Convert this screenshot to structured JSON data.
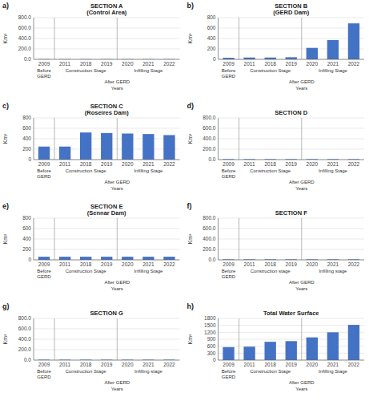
{
  "chart_data": [
    {
      "type": "bar",
      "title": "SECTION A\n(Control Area)",
      "ylabel": "Km²",
      "categories": [
        "2009",
        "2011",
        "2018",
        "2019",
        "2020",
        "2021",
        "2022"
      ],
      "values": [
        5,
        5,
        5,
        5,
        5,
        5,
        5
      ],
      "color": "#4472C4",
      "ylim": [
        0,
        800
      ],
      "yticks": [
        {
          "value": 0,
          "label": "0.0"
        },
        {
          "value": 200,
          "label": "200.0"
        },
        {
          "value": 400,
          "label": "400.0"
        },
        {
          "value": 600,
          "label": "600.0"
        },
        {
          "value": 800,
          "label": "800.0"
        }
      ],
      "grid": true,
      "annotations": [
        "a)",
        "Before\nGERD",
        "Construction Stage",
        "Infilling Stage",
        "After GERD",
        "Years"
      ]
    },
    {
      "type": "bar",
      "title": "SECTION B\n(GERD Dam)",
      "ylabel": "Km²",
      "categories": [
        "2009",
        "2011",
        "2018",
        "2019",
        "2020",
        "2021",
        "2022"
      ],
      "values": [
        30,
        35,
        35,
        40,
        220,
        370,
        690
      ],
      "color": "#4472C4",
      "ylim": [
        0,
        800
      ],
      "yticks": [
        0,
        200,
        400,
        600,
        800
      ],
      "grid": true,
      "annotations": [
        "b)",
        "Before\nGERD",
        "Construction Stage",
        "Infilling Stage",
        "After GERD",
        "Years"
      ]
    },
    {
      "type": "bar",
      "title": "SECTION C\n(Roseires Dam)",
      "ylabel": "Km²",
      "categories": [
        "2009",
        "2011",
        "2018",
        "2019",
        "2020",
        "2021",
        "2022"
      ],
      "values": [
        250,
        250,
        520,
        510,
        500,
        490,
        470
      ],
      "color": "#4472C4",
      "ylim": [
        0,
        800
      ],
      "yticks": [
        0,
        200,
        400,
        600,
        800
      ],
      "grid": true,
      "annotations": [
        "c)",
        "Before\nGERD",
        "Construction Stage",
        "Infilling Stage",
        "After GERD",
        "Years"
      ]
    },
    {
      "type": "bar",
      "title": "SECTION D",
      "ylabel": "Km²",
      "categories": [
        "2009",
        "2011",
        "2018",
        "2019",
        "2020",
        "2021",
        "2022"
      ],
      "values": [
        10,
        10,
        10,
        10,
        10,
        10,
        10
      ],
      "color": "#4472C4",
      "ylim": [
        0,
        800
      ],
      "yticks": [
        {
          "value": 0,
          "label": "0.0"
        },
        {
          "value": 200,
          "label": "200.0"
        },
        {
          "value": 400,
          "label": "400.0"
        },
        {
          "value": 600,
          "label": "600.0"
        },
        {
          "value": 800,
          "label": "800.0"
        }
      ],
      "grid": true,
      "annotations": [
        "d)",
        "Before\nGERD",
        "Construction Stage",
        "Infilling Stage",
        "After GERD",
        "Years"
      ]
    },
    {
      "type": "bar",
      "title": "SECTION E\n(Sennar Dam)",
      "ylabel": "Km²",
      "categories": [
        "2009",
        "2011",
        "2018",
        "2019",
        "2020",
        "2021",
        "2022"
      ],
      "values": [
        60,
        60,
        60,
        60,
        60,
        60,
        60
      ],
      "color": "#4472C4",
      "ylim": [
        0,
        800
      ],
      "yticks": [
        0,
        200,
        400,
        600,
        800
      ],
      "grid": true,
      "annotations": [
        "e)",
        "Before\nGERD",
        "Construction Stage",
        "Infilling Stage",
        "After GERD",
        "Years"
      ]
    },
    {
      "type": "bar",
      "title": "SECTION F",
      "ylabel": "Km²",
      "categories": [
        "2009",
        "2011",
        "2018",
        "2019",
        "2020",
        "2021",
        "2022"
      ],
      "values": [
        10,
        10,
        10,
        10,
        10,
        10,
        10
      ],
      "color": "#4472C4",
      "ylim": [
        0,
        800
      ],
      "yticks": [
        {
          "value": 0,
          "label": "0.0"
        },
        {
          "value": 200,
          "label": "200.0"
        },
        {
          "value": 400,
          "label": "400.0"
        },
        {
          "value": 600,
          "label": "600.0"
        },
        {
          "value": 800,
          "label": "800.0"
        }
      ],
      "grid": true,
      "annotations": [
        "f)",
        "Before\nGERD",
        "Construction stage",
        "Infilling stage",
        "After GERD",
        "Years"
      ]
    },
    {
      "type": "bar",
      "title": "SECTION G",
      "ylabel": "Km²",
      "categories": [
        "2009",
        "2011",
        "2018",
        "2019",
        "2020",
        "2021",
        "2022"
      ],
      "values": [
        8,
        8,
        8,
        8,
        8,
        8,
        8
      ],
      "color": "#4472C4",
      "ylim": [
        0,
        800
      ],
      "yticks": [
        {
          "value": 0,
          "label": "0.0"
        },
        {
          "value": 200,
          "label": "200.0"
        },
        {
          "value": 400,
          "label": "400.0"
        },
        {
          "value": 600,
          "label": "600.0"
        },
        {
          "value": 800,
          "label": "800.0"
        }
      ],
      "grid": true,
      "annotations": [
        "g)",
        "Before\nGERD",
        "Construction Stage",
        "Infilling stage",
        "After GERD",
        "Years"
      ]
    },
    {
      "type": "bar",
      "title": "Total Water Surface",
      "ylabel": "Km²",
      "categories": [
        "2009",
        "2011",
        "2018",
        "2019",
        "2020",
        "2021",
        "2022"
      ],
      "values": [
        560,
        580,
        790,
        820,
        980,
        1200,
        1520
      ],
      "color": "#4472C4",
      "ylim": [
        0,
        1800
      ],
      "yticks": [
        0,
        300,
        600,
        900,
        1200,
        1500,
        1800
      ],
      "grid": true,
      "annotations": [
        "h)",
        "Before\nGERD",
        "Construction Stage",
        "Infilling Stage",
        "After GERD",
        "Years"
      ]
    }
  ]
}
